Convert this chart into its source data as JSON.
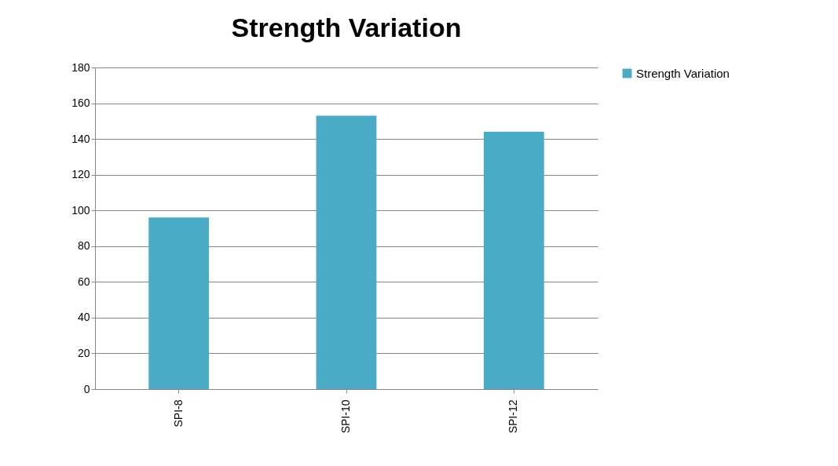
{
  "chart_data": {
    "type": "bar",
    "title": "Strength Variation",
    "categories": [
      "SPI-8",
      "SPI-10",
      "SPI-12"
    ],
    "series": [
      {
        "name": "Strength  Variation",
        "color": "#4aabc6",
        "values": [
          96,
          153,
          144
        ]
      }
    ],
    "ylim": [
      0,
      180
    ],
    "yticks": [
      0,
      20,
      40,
      60,
      80,
      100,
      120,
      140,
      160,
      180
    ],
    "grid": "y",
    "legend": "right"
  }
}
